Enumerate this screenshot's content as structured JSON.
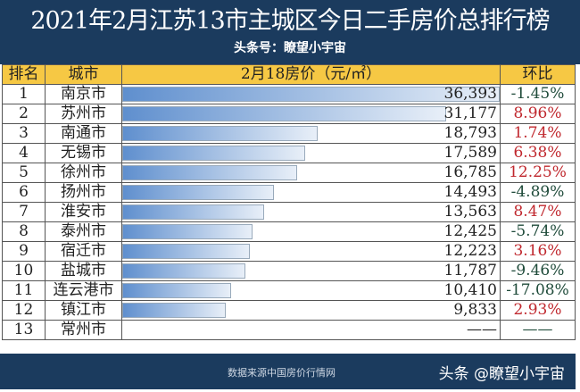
{
  "header": {
    "title": "2021年2月江苏13市主城区今日二手房价总排行榜",
    "subtitle": "头条号：瞭望小宇宙"
  },
  "columns": [
    "排名",
    "城市",
    "2月18房价（元/㎡）",
    "环比"
  ],
  "max_price": 36393,
  "rows": [
    {
      "rank": "1",
      "city": "南京市",
      "price": "36,393",
      "value": 36393,
      "change": "-1.45%",
      "dir": "neg"
    },
    {
      "rank": "2",
      "city": "苏州市",
      "price": "31,177",
      "value": 31177,
      "change": "8.96%",
      "dir": "pos"
    },
    {
      "rank": "3",
      "city": "南通市",
      "price": "18,793",
      "value": 18793,
      "change": "1.74%",
      "dir": "pos"
    },
    {
      "rank": "4",
      "city": "无锡市",
      "price": "17,589",
      "value": 17589,
      "change": "6.38%",
      "dir": "pos"
    },
    {
      "rank": "5",
      "city": "徐州市",
      "price": "16,785",
      "value": 16785,
      "change": "12.25%",
      "dir": "pos"
    },
    {
      "rank": "6",
      "city": "扬州市",
      "price": "14,493",
      "value": 14493,
      "change": "-4.89%",
      "dir": "neg"
    },
    {
      "rank": "7",
      "city": "淮安市",
      "price": "13,563",
      "value": 13563,
      "change": "8.47%",
      "dir": "pos"
    },
    {
      "rank": "8",
      "city": "泰州市",
      "price": "12,425",
      "value": 12425,
      "change": "-5.74%",
      "dir": "neg"
    },
    {
      "rank": "9",
      "city": "宿迁市",
      "price": "12,223",
      "value": 12223,
      "change": "3.16%",
      "dir": "pos"
    },
    {
      "rank": "10",
      "city": "盐城市",
      "price": "11,787",
      "value": 11787,
      "change": "-9.46%",
      "dir": "neg"
    },
    {
      "rank": "11",
      "city": "连云港市",
      "price": "10,410",
      "value": 10410,
      "change": "-17.08%",
      "dir": "neg"
    },
    {
      "rank": "12",
      "city": "镇江市",
      "price": "9,833",
      "value": 9833,
      "change": "2.93%",
      "dir": "pos"
    },
    {
      "rank": "13",
      "city": "常州市",
      "price": "——",
      "value": 0,
      "change": "——",
      "dir": "neg"
    }
  ],
  "colors": {
    "header_bg": "#1b3b5e",
    "column_header_bg": "#f6c844",
    "positive": "#c0282e",
    "negative": "#1f4b3a"
  },
  "footer": {
    "source": "数据来源中国房价行情网",
    "watermark": "头条 @瞭望小宇宙"
  }
}
